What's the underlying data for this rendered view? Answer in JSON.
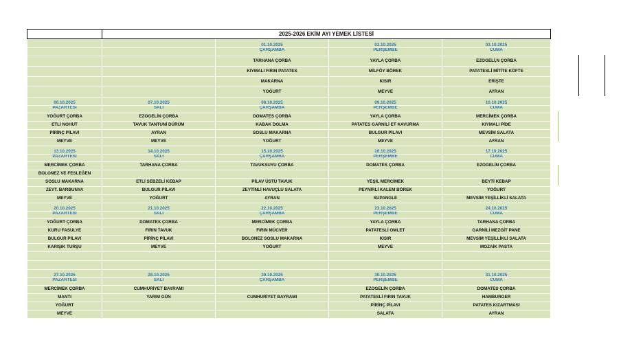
{
  "title": "2025-2026 EKİM AYI YEMEK LİSTESİ",
  "weeks": [
    {
      "dates": [
        "",
        "",
        "01.10.2025",
        "02.10.2025",
        "03.10.2025"
      ],
      "days": [
        "",
        "",
        "ÇARŞAMBA",
        "PERŞEMBE",
        "CUMA"
      ],
      "rows": [
        [
          "",
          "",
          "TARHANA ÇORBA",
          "YAYLA ÇORBA",
          "EZOGELİ,N ÇORBA"
        ],
        [
          "",
          "",
          "KIYMALI FIRIN PATATES",
          "MİLFÖY BÖREK",
          "PATATESLİ MİTİTE KÖFTE"
        ],
        [
          "",
          "",
          "MAKARNA",
          "KISIR",
          "ERİŞTE"
        ],
        [
          "",
          "",
          "YOĞURT",
          "MEYVE",
          "AYRAN"
        ]
      ]
    },
    {
      "dates": [
        "06.10.2025",
        "07.10.2025",
        "08.10.2025",
        "09.10.2025",
        "10.10.2025"
      ],
      "days": [
        "PAZARTESİ",
        "SALI",
        "ÇARŞAMBA",
        "PERŞEMBE",
        "CUMA"
      ],
      "rows": [
        [
          "YOĞURT ÇORBA",
          "EZOGELİN  ÇORBA",
          "DOMATES ÇORBA",
          "YAYLA ÇORBA",
          "MERCİMEK ÇORBA"
        ],
        [
          "ETLİ NOHUT",
          "TAVUK TANTUNİ DÜRÜM",
          "KABAK DOLMA",
          "PATATES GARNİLİ ET KAVURMA",
          "KIYMALI PİDE"
        ],
        [
          "PİRİNÇ PİLAVI",
          "AYRAN",
          "SOSLU MAKARNA",
          "BULGUR PİLAVI",
          "MEVSİM SALATA"
        ],
        [
          "MEYVE",
          "MEYVE",
          "YOĞURT",
          "MEYVE",
          "AYRAN"
        ]
      ]
    },
    {
      "dates": [
        "13.10.2025",
        "14.10.2025",
        "15.10.2025",
        "16.10.2025",
        "17.10.2025"
      ],
      "days": [
        "PAZARTESİ",
        "SALI",
        "ÇARŞAMBA",
        "PERŞEMBE",
        "CUMA"
      ],
      "rows": [
        [
          "MERCİMEK ÇORBA",
          "TARHANA ÇORBA",
          "TAVUKSUYU ÇORBA",
          "DOMATES ÇORBA",
          "EZOGELİN ÇORBA"
        ],
        [
          "BOLONEZ VE FESLEĞEN",
          "",
          "",
          "",
          ""
        ],
        [
          "SOSLU MAKARNA",
          "ETLİ SEBZELİ KEBAP",
          "PİLAV ÜSTÜ TAVUK",
          "YEŞİL MERCİMEK",
          "BEYTİ KEBAP"
        ],
        [
          "ZEYT. BARBUNYA",
          "BULGUR PİLAVI",
          "ZEYTİNLİ HAVUÇLU SALATA",
          "PEYNİRLİ KALEM BÖREK",
          "YOĞURT"
        ],
        [
          "MEYVE",
          "YOĞURT",
          "AYRAN",
          "SUPANGLE",
          "MEVSİM YEŞİLLİKLİ SALATA"
        ]
      ]
    },
    {
      "dates": [
        "20.10.2025",
        "21.10.2025",
        "22.10.2025",
        "23.10.2025",
        "24.10.2025"
      ],
      "days": [
        "PAZARTESİ",
        "SALI",
        "ÇARŞAMBA",
        "PERŞEMBE",
        "CUMA"
      ],
      "rows": [
        [
          "YOĞURT ÇORBA",
          "DOMATES ÇORBA",
          "MERCİMEK ÇORBA",
          "YAYLA ÇORBA",
          "TARHANA ÇORBA"
        ],
        [
          "KURU FASULYE",
          "FIRIN TAVUK",
          "FIRIN MÜCVER",
          "PATATESLİ OMLET",
          "GARNİLİ MEZGİT PANE"
        ],
        [
          "BULGUR PİLAVI",
          "PİRİNÇ PİLAVI",
          "BOLONEZ SOSLU MAKARNA",
          "KISIR",
          "MEVSİM YEŞİLLİKLİ SALATA"
        ],
        [
          "KARIŞIK TURŞU",
          "MEYVE",
          "YOĞURT",
          "MEYVE",
          "MOZAİK PASTA"
        ]
      ]
    },
    {
      "dates": [
        "27.10.2025",
        "28.10.2025",
        "29.10.2025",
        "30.10.2025",
        "31.10.2025"
      ],
      "days": [
        "PAZARTESİ",
        "SALI",
        "ÇARŞAMBA",
        "PERŞEMBE",
        "CUMA"
      ],
      "rows": [
        [
          "MERCİMEK ÇORBA",
          "CUMHURİYET BAYRAMI",
          "",
          "EZOGELİN ÇORBA",
          "DOMATES ÇORBA"
        ],
        [
          "MANTI",
          "YARIM GÜN",
          "CUMHURİYET BAYRAMI",
          "PATATESLİ FIRIN TAVUK",
          "HAMBURGER"
        ],
        [
          "YOĞURT",
          "",
          "",
          "PİRİNÇ PİLAVI",
          "PATATES KIZARTMASI"
        ],
        [
          "MEYVE",
          "",
          "",
          "SALATA",
          "AYRAN"
        ]
      ]
    }
  ]
}
